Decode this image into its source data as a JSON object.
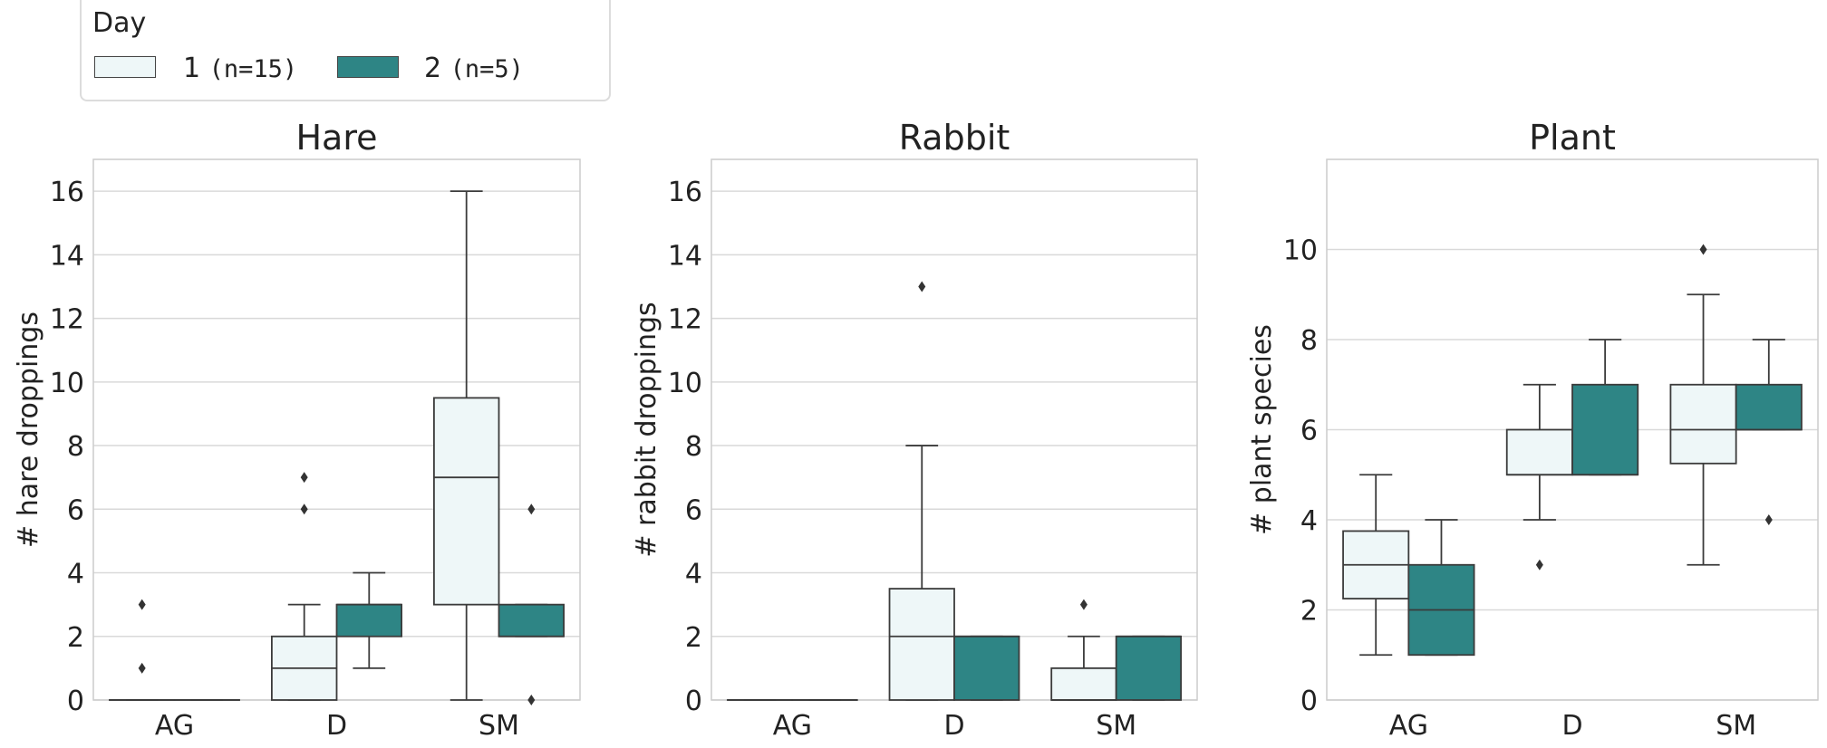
{
  "legend": {
    "title": "Day",
    "items": [
      {
        "label": "1",
        "n": "(n=15)",
        "color": "#eef7f8"
      },
      {
        "label": "2",
        "n": "(n=5)",
        "color": "#2e8585"
      }
    ]
  },
  "chart_data": [
    {
      "type": "box",
      "title": "Hare",
      "ylabel": "# hare droppings",
      "categories": [
        "AG",
        "D",
        "SM"
      ],
      "ylim": [
        0,
        17
      ],
      "yticks": [
        0,
        2,
        4,
        6,
        8,
        10,
        12,
        14,
        16
      ],
      "grid": true,
      "series": [
        {
          "name": "1 (n=15)",
          "boxes": [
            {
              "min": 0,
              "q1": 0,
              "median": 0,
              "q3": 0,
              "max": 0,
              "outliers": [
                1,
                3
              ]
            },
            {
              "min": 0,
              "q1": 0,
              "median": 1,
              "q3": 2,
              "max": 3,
              "outliers": [
                6,
                7
              ]
            },
            {
              "min": 0,
              "q1": 3,
              "median": 7,
              "q3": 9.5,
              "max": 16,
              "outliers": []
            }
          ]
        },
        {
          "name": "2 (n=5)",
          "boxes": [
            {
              "min": 0,
              "q1": 0,
              "median": 0,
              "q3": 0,
              "max": 0,
              "outliers": []
            },
            {
              "min": 1,
              "q1": 2,
              "median": 3,
              "q3": 3,
              "max": 4,
              "outliers": []
            },
            {
              "min": 2,
              "q1": 2,
              "median": 2,
              "q3": 3,
              "max": 3,
              "outliers": [
                0,
                6
              ]
            }
          ]
        }
      ]
    },
    {
      "type": "box",
      "title": "Rabbit",
      "ylabel": "# rabbit droppings",
      "categories": [
        "AG",
        "D",
        "SM"
      ],
      "ylim": [
        0,
        17
      ],
      "yticks": [
        0,
        2,
        4,
        6,
        8,
        10,
        12,
        14,
        16
      ],
      "grid": true,
      "series": [
        {
          "name": "1 (n=15)",
          "boxes": [
            {
              "min": 0,
              "q1": 0,
              "median": 0,
              "q3": 0,
              "max": 0,
              "outliers": []
            },
            {
              "min": 0,
              "q1": 0,
              "median": 2,
              "q3": 3.5,
              "max": 8,
              "outliers": [
                13
              ]
            },
            {
              "min": 0,
              "q1": 0,
              "median": 0,
              "q3": 1,
              "max": 2,
              "outliers": [
                3
              ]
            }
          ]
        },
        {
          "name": "2 (n=5)",
          "boxes": [
            {
              "min": 0,
              "q1": 0,
              "median": 0,
              "q3": 0,
              "max": 0,
              "outliers": []
            },
            {
              "min": 0,
              "q1": 0,
              "median": 2,
              "q3": 2,
              "max": 2,
              "outliers": []
            },
            {
              "min": 0,
              "q1": 0,
              "median": 2,
              "q3": 2,
              "max": 2,
              "outliers": []
            }
          ]
        }
      ]
    },
    {
      "type": "box",
      "title": "Plant",
      "ylabel": "# plant species",
      "categories": [
        "AG",
        "D",
        "SM"
      ],
      "ylim": [
        0,
        12
      ],
      "yticks": [
        0,
        2,
        4,
        6,
        8,
        10
      ],
      "grid": true,
      "series": [
        {
          "name": "1 (n=15)",
          "boxes": [
            {
              "min": 1,
              "q1": 2.25,
              "median": 3,
              "q3": 3.75,
              "max": 5,
              "outliers": []
            },
            {
              "min": 4,
              "q1": 5,
              "median": 5,
              "q3": 6,
              "max": 7,
              "outliers": [
                3
              ]
            },
            {
              "min": 3,
              "q1": 5.25,
              "median": 6,
              "q3": 7,
              "max": 9,
              "outliers": [
                10
              ]
            }
          ]
        },
        {
          "name": "2 (n=5)",
          "boxes": [
            {
              "min": 1,
              "q1": 1,
              "median": 2,
              "q3": 3,
              "max": 4,
              "outliers": []
            },
            {
              "min": 5,
              "q1": 5,
              "median": 5,
              "q3": 7,
              "max": 8,
              "outliers": []
            },
            {
              "min": 6,
              "q1": 6,
              "median": 6,
              "q3": 7,
              "max": 8,
              "outliers": [
                4
              ]
            }
          ]
        }
      ]
    }
  ]
}
